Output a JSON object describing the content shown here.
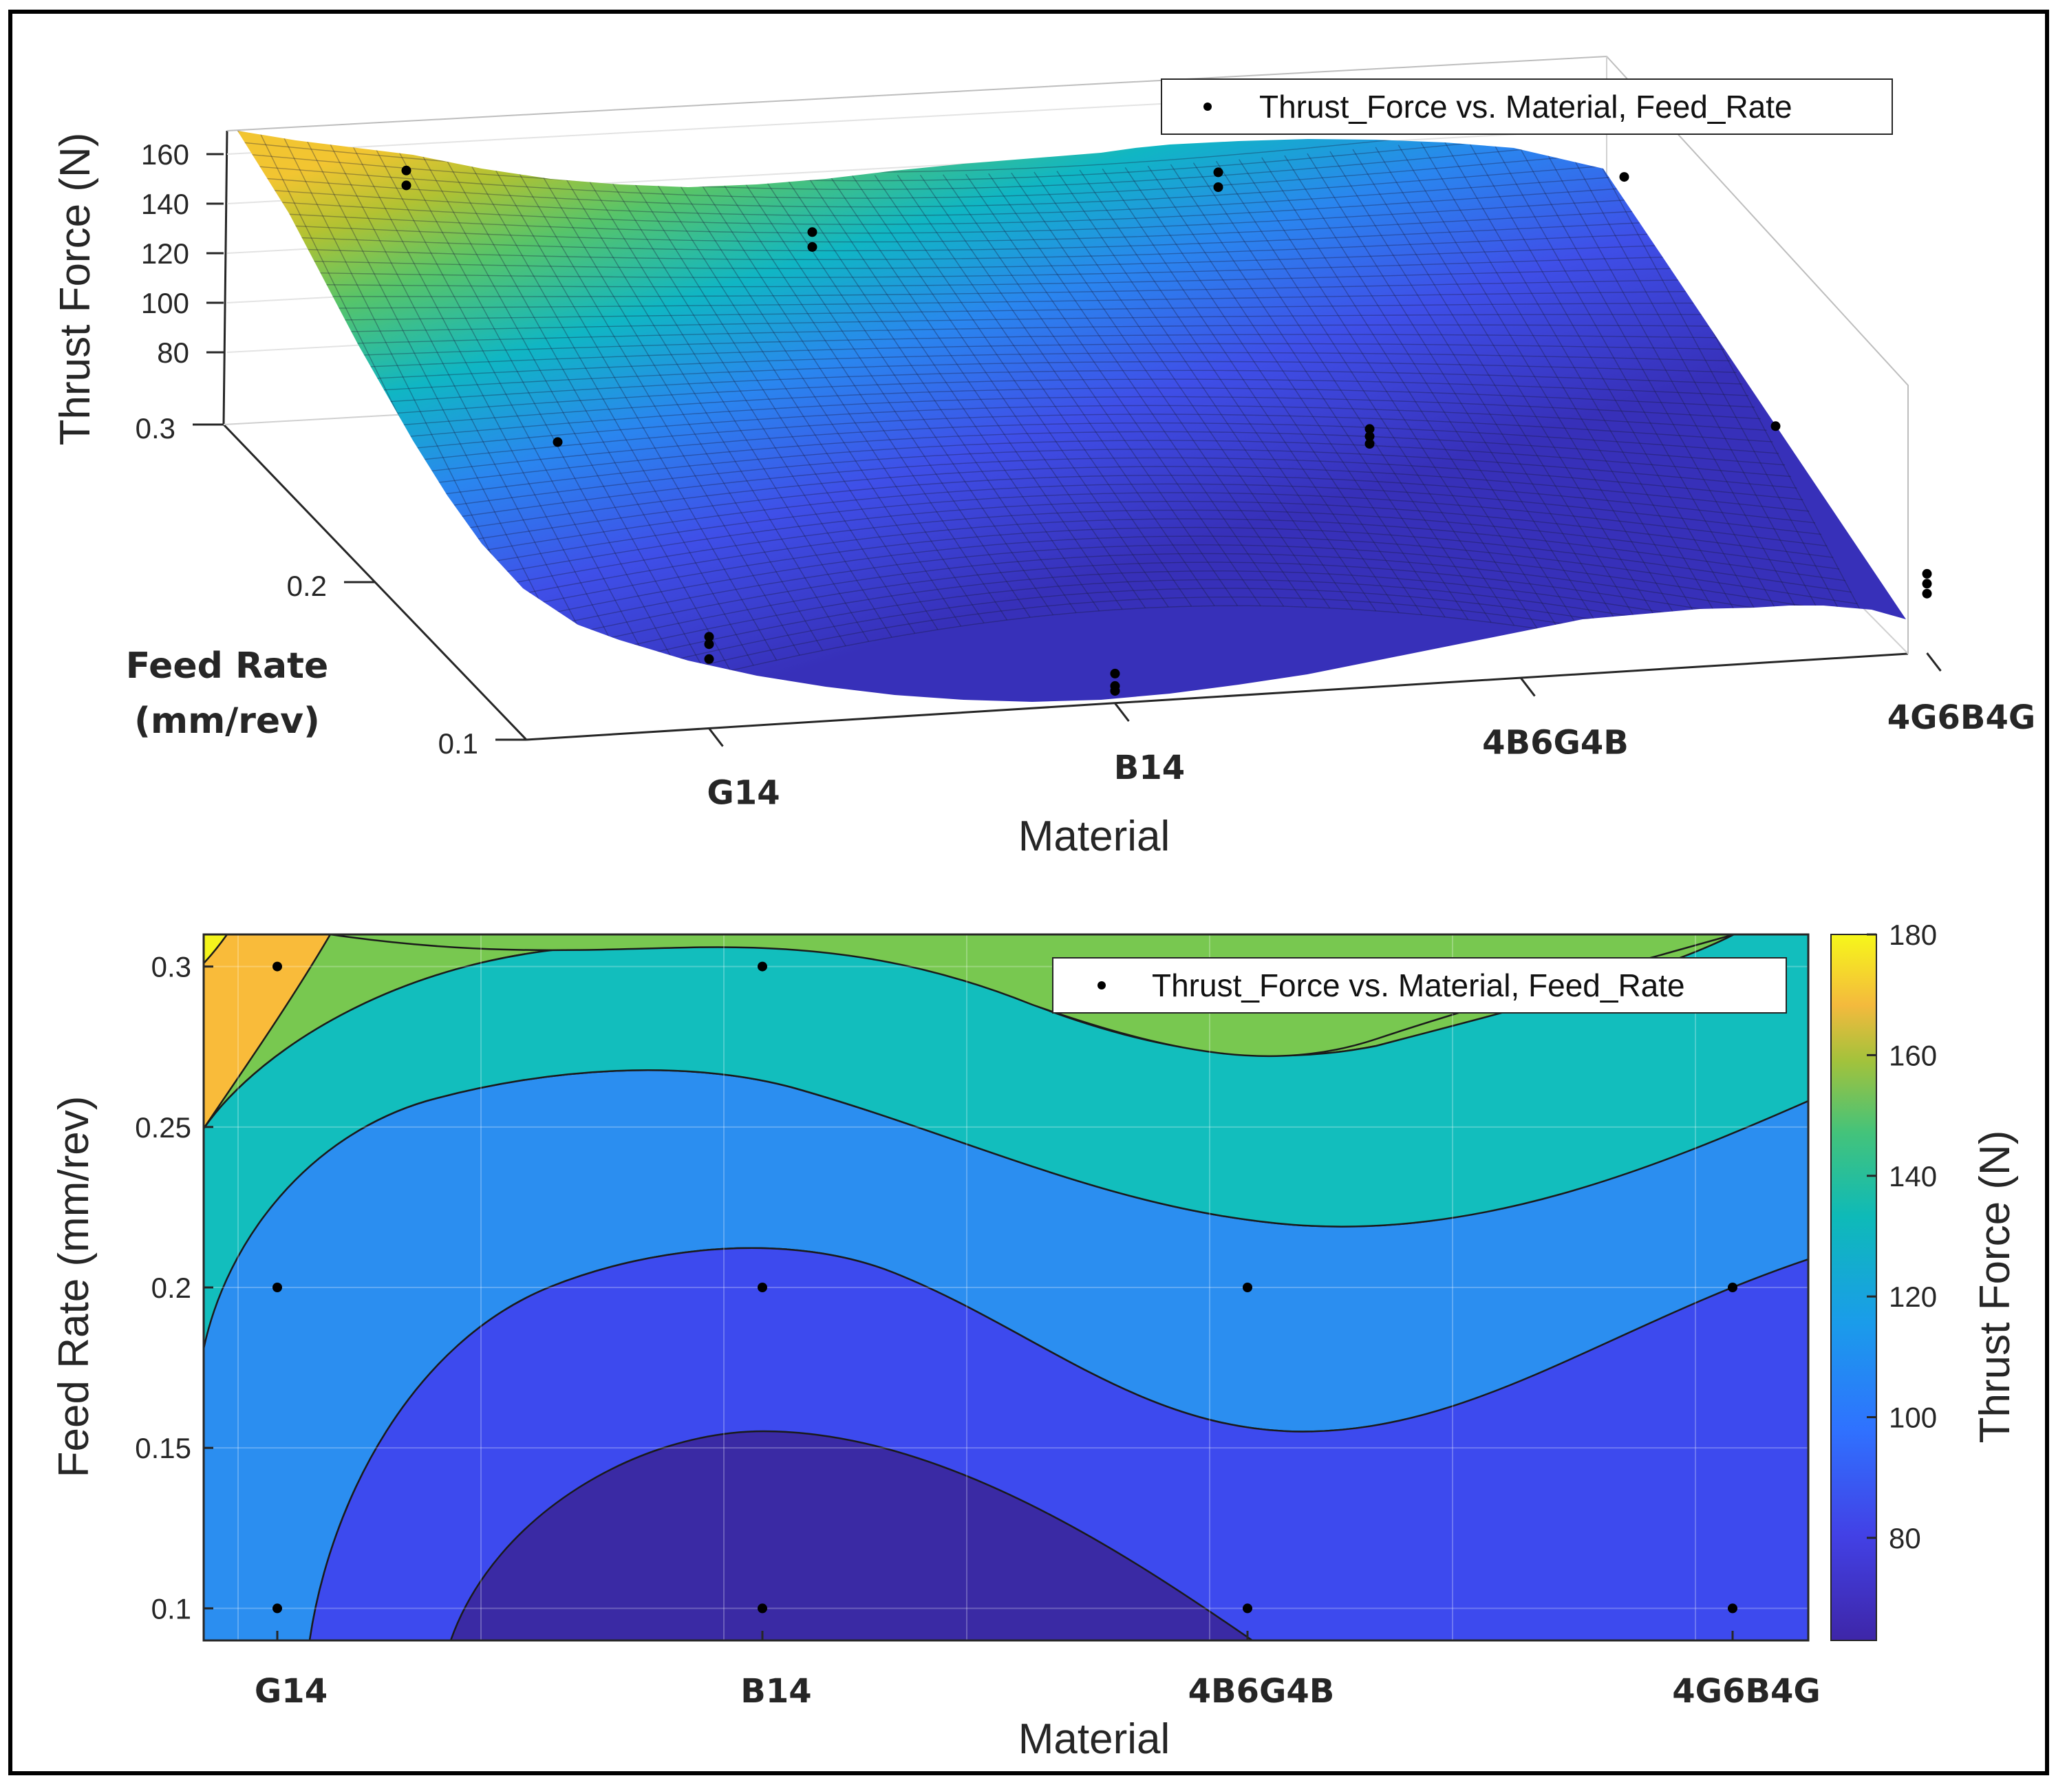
{
  "chart_data": [
    {
      "type": "surface3d",
      "title": "",
      "xlabel": "Material",
      "ylabel_lines": [
        "Feed Rate",
        "(mm/rev)"
      ],
      "zlabel": "Thrust Force (N)",
      "categories": [
        "G14",
        "B14",
        "4B6G4B",
        "4G6B4G"
      ],
      "y_ticks": [
        "0.1",
        "0.2",
        "0.3"
      ],
      "z_ticks": [
        "80",
        "100",
        "120",
        "140",
        "160"
      ],
      "legend": "Thrust_Force vs. Material, Feed_Rate",
      "points": [
        {
          "material": "G14",
          "feed_rate": 0.3,
          "thrust_force": 158
        },
        {
          "material": "G14",
          "feed_rate": 0.3,
          "thrust_force": 152
        },
        {
          "material": "G14",
          "feed_rate": 0.2,
          "thrust_force": 112
        },
        {
          "material": "G14",
          "feed_rate": 0.1,
          "thrust_force": 97
        },
        {
          "material": "G14",
          "feed_rate": 0.1,
          "thrust_force": 94
        },
        {
          "material": "G14",
          "feed_rate": 0.1,
          "thrust_force": 88
        },
        {
          "material": "B14",
          "feed_rate": 0.3,
          "thrust_force": 123
        },
        {
          "material": "B14",
          "feed_rate": 0.3,
          "thrust_force": 117
        },
        {
          "material": "B14",
          "feed_rate": 0.1,
          "thrust_force": 72
        },
        {
          "material": "B14",
          "feed_rate": 0.1,
          "thrust_force": 67
        },
        {
          "material": "B14",
          "feed_rate": 0.1,
          "thrust_force": 65
        },
        {
          "material": "4B6G4B",
          "feed_rate": 0.3,
          "thrust_force": 137
        },
        {
          "material": "4B6G4B",
          "feed_rate": 0.3,
          "thrust_force": 131
        },
        {
          "material": "4B6G4B",
          "feed_rate": 0.2,
          "thrust_force": 97
        },
        {
          "material": "4B6G4B",
          "feed_rate": 0.2,
          "thrust_force": 94
        },
        {
          "material": "4B6G4B",
          "feed_rate": 0.2,
          "thrust_force": 91
        },
        {
          "material": "4G6B4G",
          "feed_rate": 0.3,
          "thrust_force": 125
        },
        {
          "material": "4G6B4G",
          "feed_rate": 0.2,
          "thrust_force": 88
        },
        {
          "material": "4G6B4G",
          "feed_rate": 0.1,
          "thrust_force": 92
        },
        {
          "material": "4G6B4G",
          "feed_rate": 0.1,
          "thrust_force": 88
        },
        {
          "material": "4G6B4G",
          "feed_rate": 0.1,
          "thrust_force": 84
        }
      ]
    },
    {
      "type": "contour",
      "title": "",
      "xlabel": "Material",
      "ylabel": "Feed Rate (mm/rev)",
      "categories": [
        "G14",
        "B14",
        "4B6G4B",
        "4G6B4G"
      ],
      "y_ticks": [
        "0.1",
        "0.15",
        "0.2",
        "0.25",
        "0.3"
      ],
      "ylim": [
        0.09,
        0.31
      ],
      "legend": "Thrust_Force vs. Material, Feed_Rate",
      "colorbar_label": "Thrust Force (N)",
      "colorbar_ticks": [
        "80",
        "100",
        "120",
        "140",
        "160",
        "180"
      ],
      "colorbar_range": [
        63,
        180
      ],
      "contour_levels": [
        60,
        80,
        100,
        120,
        140,
        160,
        180
      ],
      "points": [
        {
          "material": "G14",
          "feed_rate": 0.3
        },
        {
          "material": "G14",
          "feed_rate": 0.2
        },
        {
          "material": "G14",
          "feed_rate": 0.1
        },
        {
          "material": "B14",
          "feed_rate": 0.3
        },
        {
          "material": "B14",
          "feed_rate": 0.2
        },
        {
          "material": "B14",
          "feed_rate": 0.1
        },
        {
          "material": "4B6G4B",
          "feed_rate": 0.2
        },
        {
          "material": "4B6G4B",
          "feed_rate": 0.1
        },
        {
          "material": "4G6B4G",
          "feed_rate": 0.2
        },
        {
          "material": "4G6B4G",
          "feed_rate": 0.1
        }
      ]
    }
  ],
  "colors": {
    "band_60": "#3a2aa4",
    "band_80": "#3d4aee",
    "band_100": "#2b8ef0",
    "band_120": "#12bebd",
    "band_140": "#78c850",
    "band_160": "#f9bb3a",
    "band_180": "#f4f41c"
  }
}
